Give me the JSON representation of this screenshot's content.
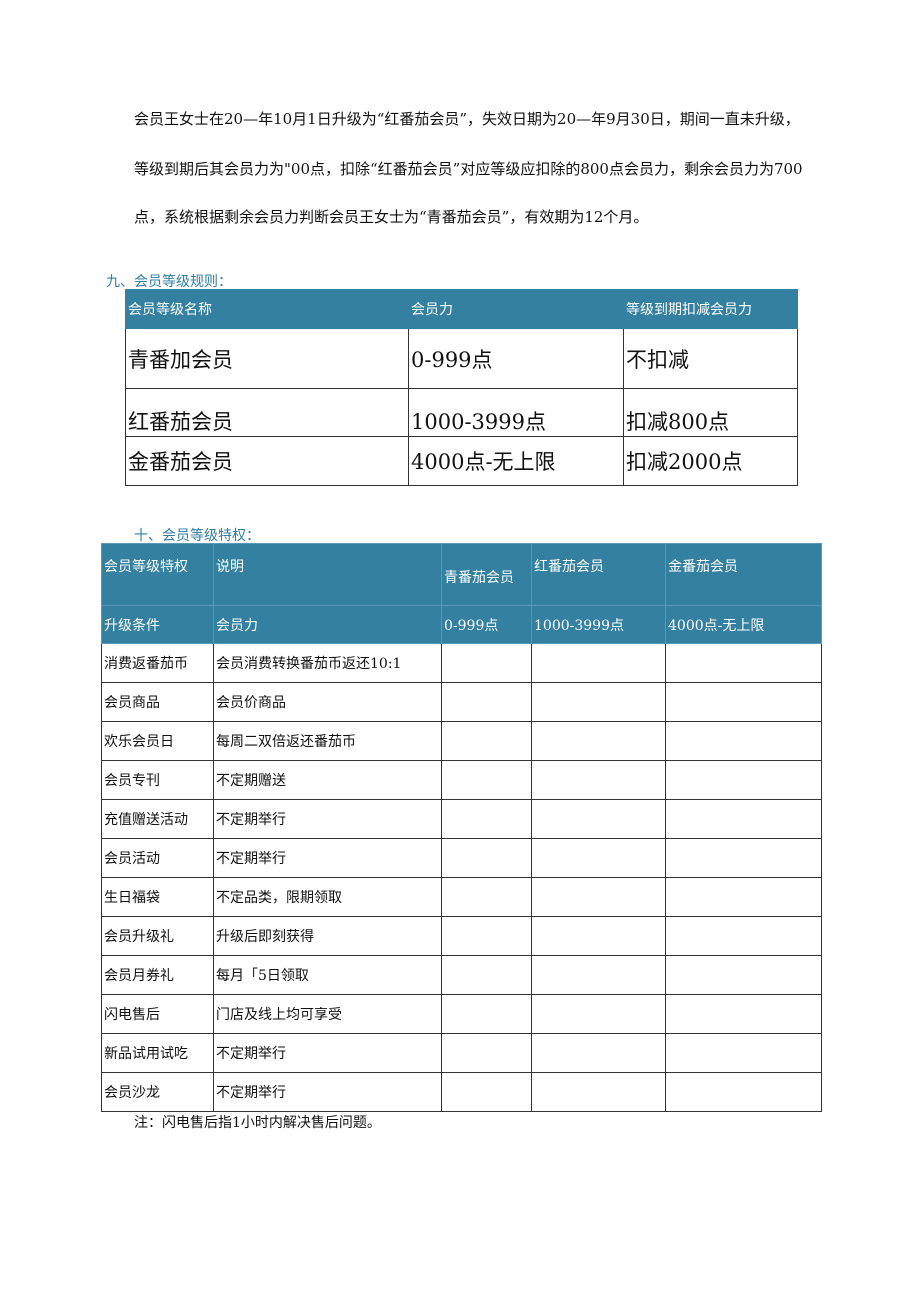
{
  "paragraph": [
    "会员王女士在20—年10月1日升级为“红番茄会员”，失效日期为20—年9月30日，期间一直未升级，",
    "等级到期后其会员力为\"00点，扣除“红番茄会员”对应等级应扣除的800点会员力，剩余会员力为700",
    "点，系统根据剩余会员力判断会员王女士为“青番茄会员”，有效期为12个月。"
  ],
  "section9": {
    "title": "九、会员等级规则：",
    "headers": [
      "会员等级名称",
      "会员力",
      "等级到期扣减会员力"
    ],
    "rows": [
      [
        "青番加会员",
        "0-999点",
        "不扣减"
      ],
      [
        "红番茄会员",
        "1000-3999点",
        "扣减800点"
      ],
      [
        "金番茄会员",
        "4000点-无上限",
        "扣减2000点"
      ]
    ]
  },
  "section10": {
    "title": "十、会员等级特权：",
    "headers": [
      "会员等级特权",
      "说明",
      "青番茄会员",
      "红番茄会员",
      "金番茄会员"
    ],
    "subheader": [
      "升级条件",
      "会员力",
      "0-999点",
      "1000-3999点",
      "4000点-无上限"
    ],
    "rows": [
      [
        "消费返番茄币",
        "会员消费转换番茄币返还10:1"
      ],
      [
        "会员商品",
        "会员价商品"
      ],
      [
        "欢乐会员日",
        "每周二双倍返还番茄币"
      ],
      [
        "会员专刊",
        "不定期赠送"
      ],
      [
        "充值赠送活动",
        "不定期举行"
      ],
      [
        "会员活动",
        "不定期举行"
      ],
      [
        "生日福袋",
        "不定品类，限期领取"
      ],
      [
        "会员升级礼",
        "升级后即刻获得"
      ],
      [
        "会员月券礼",
        "每月「5日领取"
      ],
      [
        "闪电售后",
        "门店及线上均可享受"
      ],
      [
        "新品试用试吃",
        "不定期举行"
      ],
      [
        "会员沙龙",
        "不定期举行"
      ]
    ]
  },
  "note": "注：闪电售后指1小时内解决售后问题。",
  "colors": {
    "header": "#3380a0"
  }
}
